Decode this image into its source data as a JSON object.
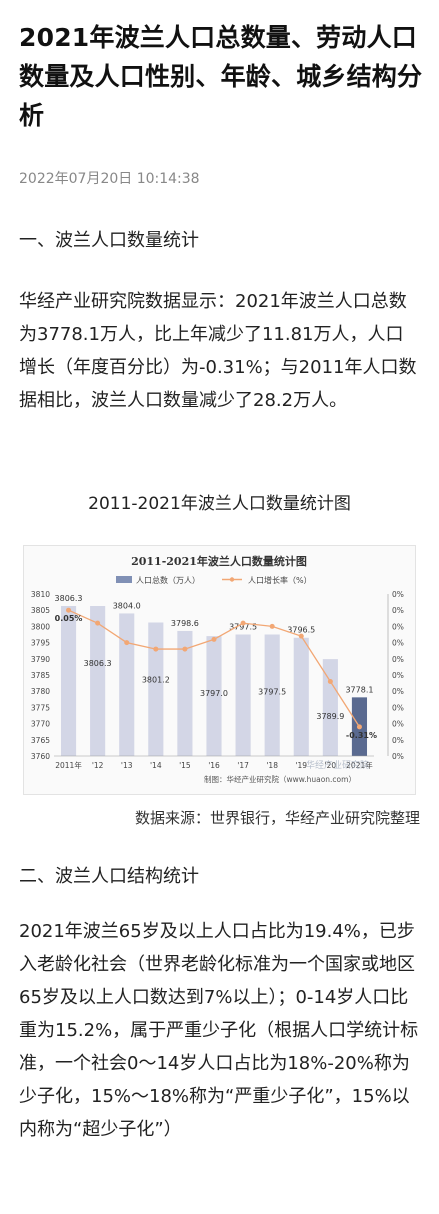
{
  "article": {
    "title": "2021年波兰人口总数量、劳动人口数量及人口性别、年龄、城乡结构分析",
    "timestamp": "2022年07月20日 10:14:38",
    "section1_heading": "一、波兰人口数量统计",
    "section1_paragraph": "华经产业研究院数据显示：2021年波兰人口总数为3778.1万人，比上年减少了11.81万人，人口增长（年度百分比）为-0.31%；与2011年人口数据相比，波兰人口数量减少了28.2万人。",
    "figure_caption": "2011-2021年波兰人口数量统计图",
    "source_note": "数据来源：世界银行，华经产业研究院整理",
    "section2_heading": "二、波兰人口结构统计",
    "section2_paragraph": "2021年波兰65岁及以上人口占比为19.4%，已步入老龄化社会（世界老龄化标准为一个国家或地区65岁及以上人口数达到7%以上）；0-14岁人口比重为15.2%，属于严重少子化（根据人口学统计标准，一个社会0～14岁人口占比为18%-20%称为少子化，15%～18%称为“严重少子化”，15%以内称为“超少子化”）"
  },
  "chart_data": {
    "type": "bar",
    "title": "2011-2021年波兰人口数量统计图",
    "legend": {
      "position": "top",
      "bar_label": "人口总数（万人）",
      "line_label": "人口增长率（%）"
    },
    "categories": [
      "2011年",
      "'12",
      "'13",
      "'14",
      "'15",
      "'16",
      "'17",
      "'18",
      "'19",
      "'20",
      "2021年"
    ],
    "series": [
      {
        "name": "人口总数（万人）",
        "kind": "bar",
        "axis": "left",
        "values": [
          3806.3,
          3806.3,
          3804.0,
          3801.2,
          3798.6,
          3797.0,
          3797.5,
          3797.5,
          3796.5,
          3789.9,
          3778.1
        ],
        "value_labels": [
          "3806.3",
          "3806.3",
          "3804.0",
          "3801.2",
          "3798.6",
          "3797.0",
          "3797.5",
          "3797.5",
          "3796.5",
          "3789.9",
          "3778.1"
        ],
        "colors": [
          "#d3d6e6",
          "#d3d6e6",
          "#d3d6e6",
          "#d3d6e6",
          "#d3d6e6",
          "#d3d6e6",
          "#d3d6e6",
          "#d3d6e6",
          "#d3d6e6",
          "#d3d6e6",
          "#5a6a90"
        ]
      },
      {
        "name": "人口增长率（%）",
        "kind": "line",
        "axis": "right",
        "values": [
          0.05,
          0.01,
          -0.05,
          -0.07,
          -0.07,
          -0.04,
          0.01,
          0.0,
          -0.03,
          -0.17,
          -0.31
        ],
        "point_labels": [
          "0.05%",
          "",
          "",
          "",
          "",
          "",
          "",
          "",
          "",
          "",
          "-0.31%"
        ],
        "color": "#f2a774"
      }
    ],
    "left_axis": {
      "ylim": [
        3760,
        3810
      ],
      "ticks": [
        3760,
        3765,
        3770,
        3775,
        3780,
        3785,
        3790,
        3795,
        3800,
        3805,
        3810
      ],
      "tick_labels": [
        "3760",
        "3765",
        "3770",
        "3775",
        "3780",
        "3785",
        "3790",
        "3795",
        "3800",
        "3805",
        "3810"
      ]
    },
    "right_axis": {
      "ylim": [
        -0.4,
        0.1
      ],
      "tick_labels": [
        "0%",
        "0%",
        "0%",
        "0%",
        "0%",
        "0%",
        "0%",
        "0%",
        "0%",
        "0%",
        "0%"
      ]
    },
    "grid": false,
    "footer_text": "制图：华经产业研究院（www.huaon.com）",
    "watermark_text": "华经产业研究院 www.huaon.com"
  }
}
